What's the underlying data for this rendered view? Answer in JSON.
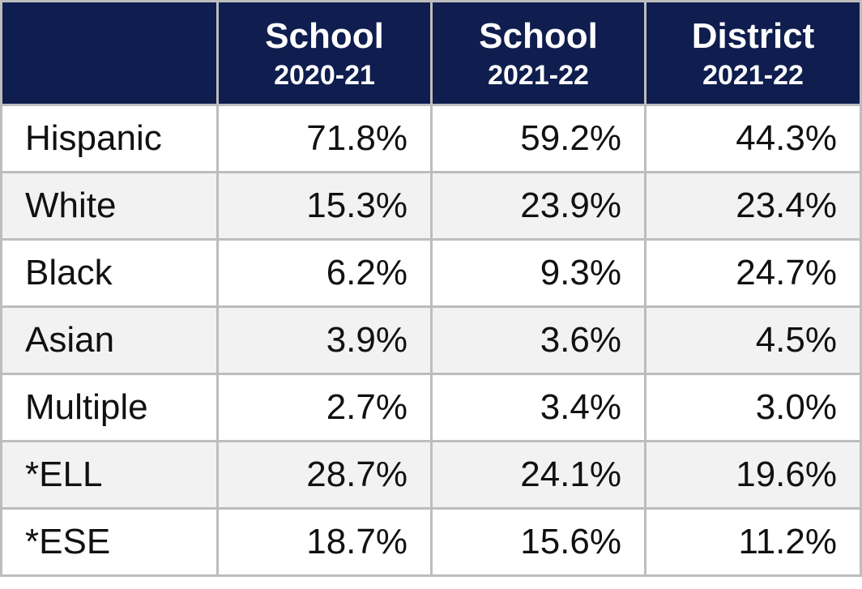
{
  "table": {
    "columns": [
      {
        "title": "School",
        "period": "2020-21"
      },
      {
        "title": "School",
        "period": "2021-22"
      },
      {
        "title": "District",
        "period": "2021-22"
      }
    ],
    "rows": [
      {
        "label": "Hispanic",
        "values": [
          "71.8%",
          "59.2%",
          "44.3%"
        ]
      },
      {
        "label": "White",
        "values": [
          "15.3%",
          "23.9%",
          "23.4%"
        ]
      },
      {
        "label": "Black",
        "values": [
          "6.2%",
          "9.3%",
          "24.7%"
        ]
      },
      {
        "label": "Asian",
        "values": [
          "3.9%",
          "3.6%",
          "4.5%"
        ]
      },
      {
        "label": "Multiple",
        "values": [
          "2.7%",
          "3.4%",
          "3.0%"
        ]
      },
      {
        "label": "*ELL",
        "values": [
          "28.7%",
          "24.1%",
          "19.6%"
        ]
      },
      {
        "label": "*ESE",
        "values": [
          "18.7%",
          "15.6%",
          "11.2%"
        ]
      }
    ]
  }
}
